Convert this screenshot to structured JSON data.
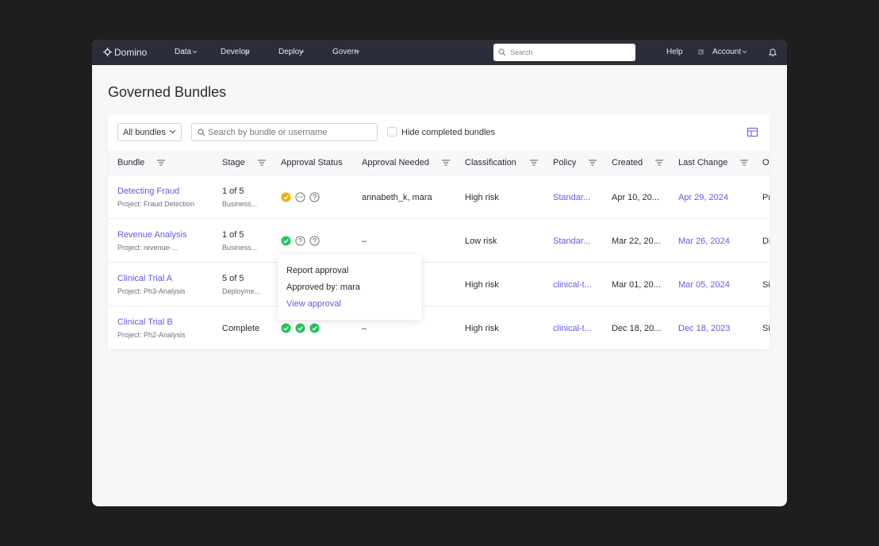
{
  "nav": {
    "brand": "Domino",
    "menu": [
      "Data",
      "Develop",
      "Deploy",
      "Govern"
    ],
    "search": "Search",
    "help": "Help",
    "account": "Account"
  },
  "header": {
    "title": "Governed Bundles"
  },
  "toolbar": {
    "filter": "All bundles",
    "search": "Search by bundle or username",
    "hide_completed": "Hide completed bundles"
  },
  "table": {
    "columns": [
      "Bundle",
      "Stage",
      "Approval Status",
      "Approval Needed",
      "Classification",
      "Policy",
      "Created",
      "Last Change",
      "Ow"
    ],
    "rows": [
      {
        "bundle": "Detecting Fraud",
        "project": "Project: Fraud Detection",
        "stage": "1 of 5",
        "stage_detail": "Business...",
        "approval_needed": "annabeth_k, mara",
        "classification": "High risk",
        "policy": "Standar...",
        "created": "Apr 10, 20...",
        "last_change": "Apr 29, 2024",
        "owner": "Pr"
      },
      {
        "bundle": "Revenue Analysis",
        "project": "Project: revenue-...",
        "stage": "1 of 5",
        "stage_detail": "Business...",
        "approval_needed": "–",
        "classification": "Low risk",
        "policy": "Standar...",
        "created": "Mar 22, 20...",
        "last_change": "Mar 26, 2024",
        "owner": "Di"
      },
      {
        "bundle": "Clinical Trial A",
        "project": "Project: Ph3-Analysis",
        "stage": "5 of 5",
        "stage_detail": "Deployme...",
        "classification": "High risk",
        "policy": "clinical-t...",
        "created": "Mar 01, 20...",
        "last_change": "Mar 05, 2024",
        "owner": "Si"
      },
      {
        "bundle": "Clinical Trial B",
        "project": "Project: Ph2-Analysis",
        "stage": "Complete",
        "approval_needed": "–",
        "classification": "High risk",
        "policy": "clinical-t...",
        "created": "Dec 18, 20...",
        "last_change": "Dec 18, 2023",
        "owner": "Si"
      }
    ]
  },
  "popover": {
    "title": "Report approval",
    "approved_by": "Approved by: mara",
    "link": "View approval"
  }
}
